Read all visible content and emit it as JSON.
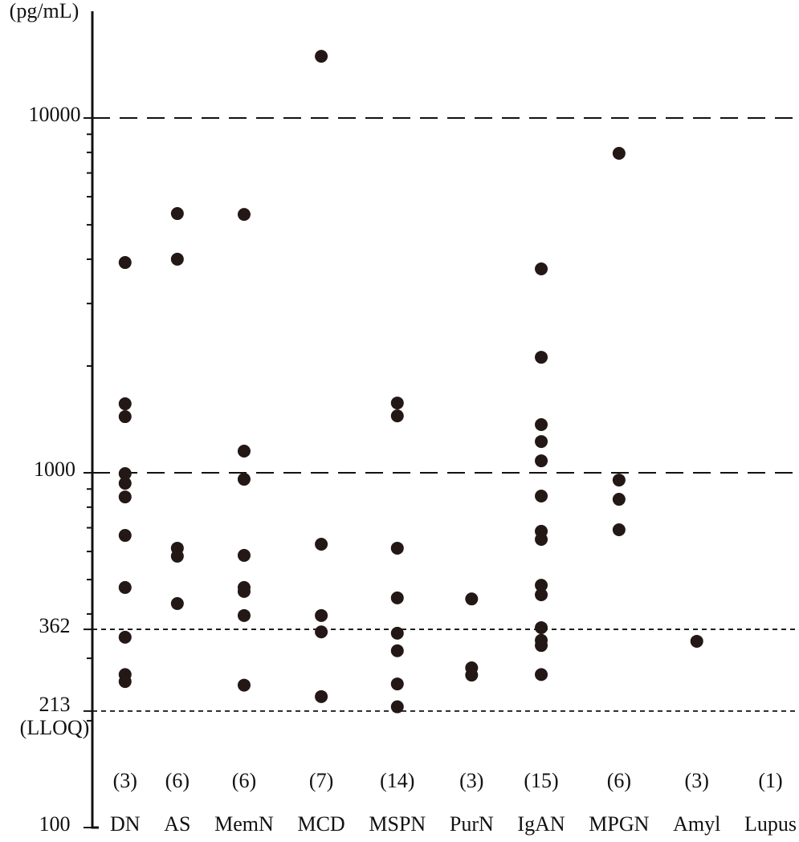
{
  "chart_data": {
    "type": "strip",
    "y_unit": "(pg/mL)",
    "log_scale": true,
    "grid": true,
    "color": "#231815",
    "ylim": [
      100,
      20000
    ],
    "yticks": [
      100,
      {
        "value": 213,
        "label": "213\n(LLOQ)"
      },
      362,
      1000,
      10000
    ],
    "groups": [
      {
        "name": "DN",
        "n_label": "(3)",
        "values": [
          3915,
          1565,
          1440,
          995,
          934,
          855,
          666,
          475,
          344,
          270,
          258
        ]
      },
      {
        "name": "AS",
        "n_label": "(6)",
        "values": [
          5380,
          4000,
          613,
          582,
          428
        ]
      },
      {
        "name": "MemN",
        "n_label": "(6)",
        "values": [
          5350,
          1151,
          959,
          585,
          475,
          463,
          396,
          252
        ]
      },
      {
        "name": "MCD",
        "n_label": "(7)",
        "values": [
          14930,
          629,
          396,
          356,
          234
        ]
      },
      {
        "name": "MSPN",
        "n_label": "(14)",
        "values": [
          1573,
          1447,
          613,
          444,
          353,
          315,
          254,
          219
        ]
      },
      {
        "name": "PurN",
        "n_label": "(3)",
        "values": [
          441,
          282,
          269
        ]
      },
      {
        "name": "IgAN",
        "n_label": "(15)",
        "values": [
          3756,
          2117,
          1367,
          1225,
          1081,
          860,
          684,
          649,
          482,
          453,
          366,
          337,
          326,
          270
        ]
      },
      {
        "name": "MPGN",
        "n_label": "(6)",
        "values": [
          7953,
          954,
          842,
          691
        ]
      },
      {
        "name": "Amyl",
        "n_label": "(3)",
        "values": [
          335
        ]
      },
      {
        "name": "Lupus",
        "n_label": "(1)",
        "values": []
      }
    ]
  }
}
